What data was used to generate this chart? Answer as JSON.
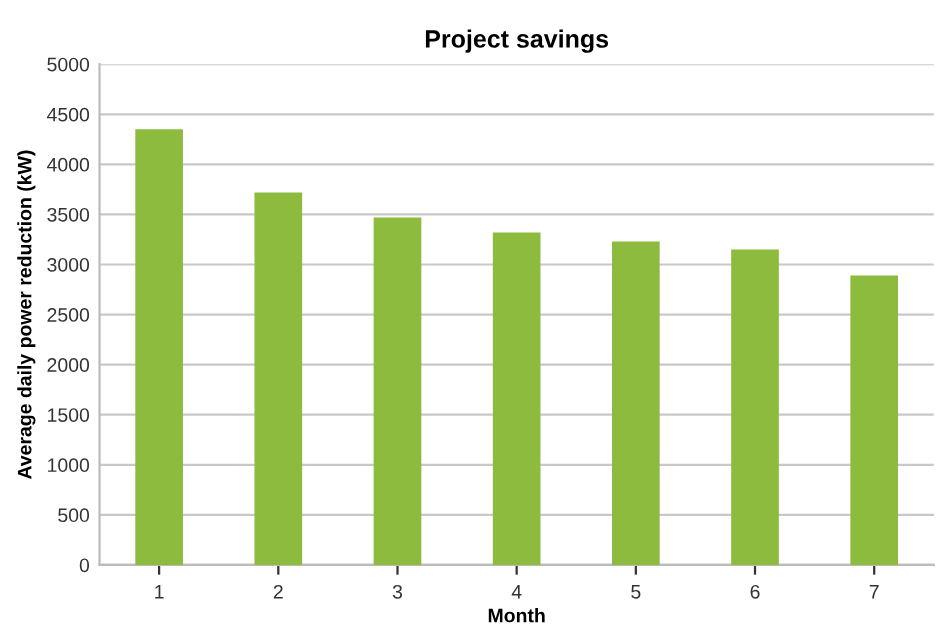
{
  "chart_data": {
    "type": "bar",
    "title": "Project savings",
    "xlabel": "Month",
    "ylabel": "Average daily power reduction (kW)",
    "categories": [
      "1",
      "2",
      "3",
      "4",
      "5",
      "6",
      "7"
    ],
    "values": [
      4350,
      3720,
      3470,
      3320,
      3230,
      3150,
      2890
    ],
    "color": "#8dbb3e",
    "ylim": [
      0,
      5000
    ],
    "yticks": [
      0,
      500,
      1000,
      1500,
      2000,
      2500,
      3000,
      3500,
      4000,
      4500,
      5000
    ],
    "grid": "y"
  }
}
